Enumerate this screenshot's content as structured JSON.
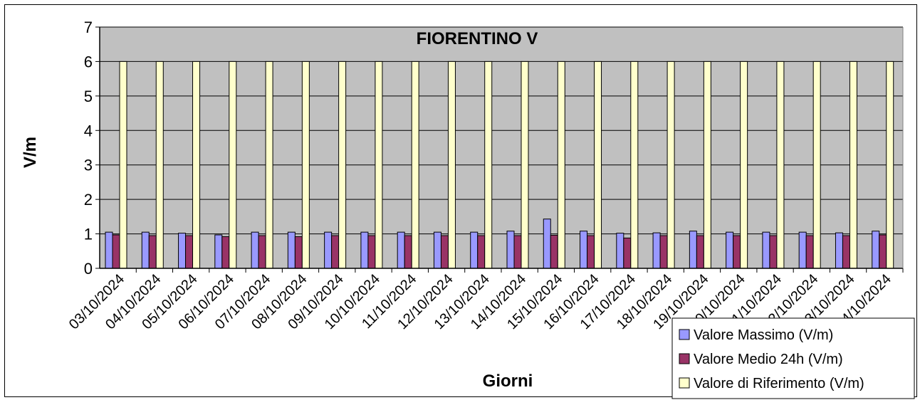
{
  "chart_data": {
    "type": "bar",
    "title": "FIORENTINO V",
    "xlabel": "Giorni",
    "ylabel": "V/m",
    "ylim": [
      0,
      7
    ],
    "yticks": [
      0,
      1,
      2,
      3,
      4,
      5,
      6,
      7
    ],
    "grid": true,
    "legend_position": "bottom-right",
    "categories": [
      "03/10/2024",
      "04/10/2024",
      "05/10/2024",
      "06/10/2024",
      "07/10/2024",
      "08/10/2024",
      "09/10/2024",
      "10/10/2024",
      "11/10/2024",
      "12/10/2024",
      "13/10/2024",
      "14/10/2024",
      "15/10/2024",
      "16/10/2024",
      "17/10/2024",
      "18/10/2024",
      "19/10/2024",
      "20/10/2024",
      "21/10/2024",
      "22/10/2024",
      "23/10/2024",
      "24/10/2024"
    ],
    "series": [
      {
        "name": "Valore Massimo (V/m)",
        "color": "#9999FF",
        "values": [
          1.05,
          1.05,
          1.02,
          0.97,
          1.05,
          1.05,
          1.05,
          1.05,
          1.05,
          1.05,
          1.05,
          1.08,
          1.43,
          1.08,
          1.02,
          1.03,
          1.08,
          1.05,
          1.05,
          1.05,
          1.03,
          1.08
        ]
      },
      {
        "name": "Valore Medio 24h (V/m)",
        "color": "#993366",
        "values": [
          0.97,
          0.95,
          0.95,
          0.92,
          0.95,
          0.92,
          0.95,
          0.95,
          0.95,
          0.95,
          0.95,
          0.95,
          0.96,
          0.95,
          0.88,
          0.95,
          0.95,
          0.95,
          0.95,
          0.95,
          0.95,
          0.97
        ]
      },
      {
        "name": "Valore di Riferimento (V/m)",
        "color": "#FFFFCC",
        "values": [
          6,
          6,
          6,
          6,
          6,
          6,
          6,
          6,
          6,
          6,
          6,
          6,
          6,
          6,
          6,
          6,
          6,
          6,
          6,
          6,
          6,
          6
        ]
      }
    ]
  },
  "colors": {
    "plot_background": "#C0C0C0",
    "gridline": "#000000"
  }
}
